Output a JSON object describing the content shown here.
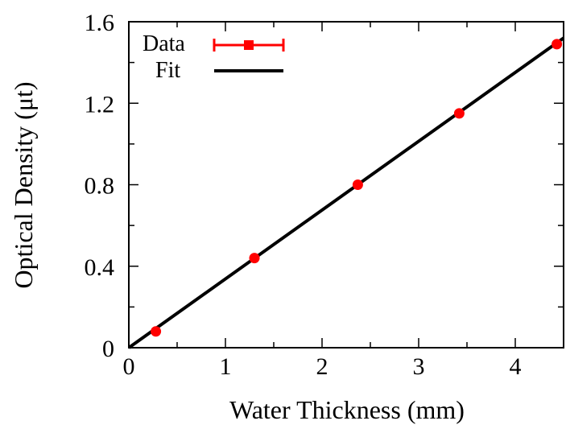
{
  "chart_data": {
    "type": "scatter",
    "title": "",
    "xlabel": "Water Thickness (mm)",
    "ylabel": "Optical Density (μt)",
    "xlim": [
      0,
      4.5
    ],
    "ylim": [
      0,
      1.6
    ],
    "x_ticks": [
      0,
      1,
      2,
      3,
      4
    ],
    "x_tick_labels": [
      "0",
      "1",
      "2",
      "3",
      "4"
    ],
    "x_minor_ticks": [
      0.5,
      1.5,
      2.5,
      3.5
    ],
    "y_ticks": [
      0,
      0.4,
      0.8,
      1.2,
      1.6
    ],
    "y_tick_labels": [
      "0",
      "0.4",
      "0.8",
      "1.2",
      "1.6"
    ],
    "y_minor_ticks": [
      0.2,
      0.6,
      1.0,
      1.4
    ],
    "grid": false,
    "legend_position": "top-left",
    "series": [
      {
        "name": "Data",
        "kind": "points_with_error_bars",
        "color": "#ff0000",
        "x": [
          0.28,
          1.3,
          2.37,
          3.42,
          4.43
        ],
        "y": [
          0.08,
          0.44,
          0.8,
          1.15,
          1.49
        ]
      },
      {
        "name": "Fit",
        "kind": "line",
        "color": "#000000",
        "x": [
          0,
          4.5
        ],
        "y": [
          0,
          1.52
        ]
      }
    ]
  }
}
